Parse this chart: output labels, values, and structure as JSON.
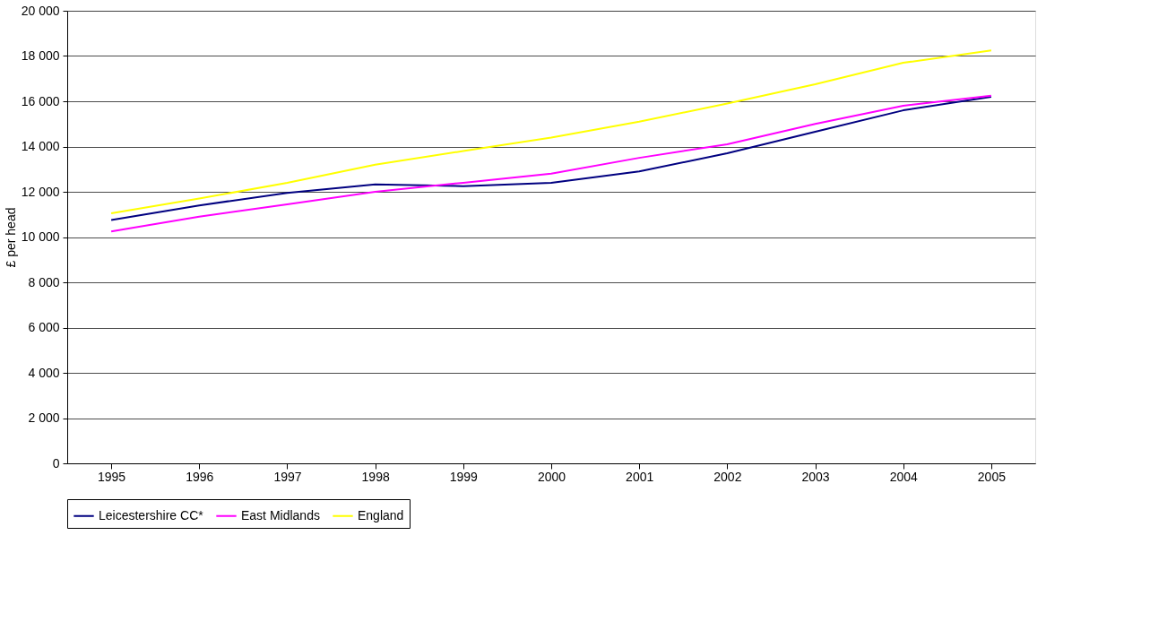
{
  "chart_data": {
    "type": "line",
    "ylabel": "£ per head",
    "categories": [
      "1995",
      "1996",
      "1997",
      "1998",
      "1999",
      "2000",
      "2001",
      "2002",
      "2003",
      "2004",
      "2005"
    ],
    "series": [
      {
        "name": "Leicestershire CC*",
        "color": "#000080",
        "values": [
          10750,
          11400,
          11950,
          12330,
          12250,
          12400,
          12900,
          13700,
          14650,
          15600,
          16200
        ]
      },
      {
        "name": "East Midlands",
        "color": "#ff00ff",
        "values": [
          10250,
          10900,
          11450,
          12000,
          12400,
          12800,
          13500,
          14100,
          15000,
          15800,
          16250
        ]
      },
      {
        "name": "England",
        "color": "#ffff00",
        "values": [
          11050,
          11700,
          12400,
          13200,
          13800,
          14400,
          15100,
          15900,
          16750,
          17700,
          18250
        ]
      }
    ],
    "ylim": [
      0,
      20000
    ],
    "yticks": [
      {
        "value": 0,
        "label": "0"
      },
      {
        "value": 2000,
        "label": "2 000"
      },
      {
        "value": 4000,
        "label": "4 000"
      },
      {
        "value": 6000,
        "label": "6 000"
      },
      {
        "value": 8000,
        "label": "8 000"
      },
      {
        "value": 10000,
        "label": "10 000"
      },
      {
        "value": 12000,
        "label": "12 000"
      },
      {
        "value": 14000,
        "label": "14 000"
      },
      {
        "value": 16000,
        "label": "16 000"
      },
      {
        "value": 18000,
        "label": "18 000"
      },
      {
        "value": 20000,
        "label": "20 000"
      }
    ],
    "grid": "y",
    "legend": "bottom",
    "marker": "none",
    "line_style": "solid"
  }
}
